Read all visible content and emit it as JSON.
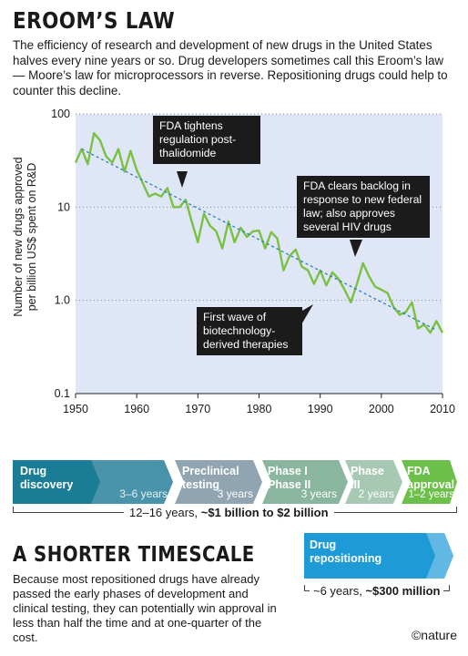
{
  "title": "EROOM’S LAW",
  "intro": "The efficiency of research and development of new drugs in the United States halves every nine years or so. Drug developers sometimes call this Eroom’s law — Moore’s law for microprocessors in reverse. Repositioning drugs could help to counter this decline.",
  "chart_data": {
    "type": "line",
    "ylabel": [
      "Number of new drugs approved",
      "per billion US$ spent on R&D"
    ],
    "xlabel": "",
    "y_scale": "log",
    "ylim": [
      0.1,
      100
    ],
    "xlim": [
      1950,
      2010
    ],
    "x_ticks": [
      1950,
      1960,
      1970,
      1980,
      1990,
      2000,
      2010
    ],
    "y_ticks": [
      0.1,
      1.0,
      10,
      100
    ],
    "y_tick_labels": [
      "0.1",
      "1.0",
      "10",
      "100"
    ],
    "grid": "horizontal dotted",
    "plot_background": "#dfe6f5",
    "line_color": "#7ac143",
    "trend_color": "#2d7dbf",
    "series": [
      {
        "x": [
          1950,
          1951,
          1952,
          1953,
          1954,
          1955,
          1956,
          1957,
          1958,
          1959,
          1960,
          1961,
          1962,
          1963,
          1964,
          1965,
          1966,
          1967,
          1968,
          1969,
          1970,
          1971,
          1972,
          1973,
          1974,
          1975,
          1976,
          1977,
          1978,
          1979,
          1980,
          1981,
          1982,
          1983,
          1984,
          1985,
          1986,
          1987,
          1988,
          1989,
          1990,
          1991,
          1992,
          1993,
          1994,
          1995,
          1996,
          1997,
          1998,
          1999,
          2000,
          2001,
          2002,
          2003,
          2004,
          2005,
          2006,
          2007,
          2008,
          2009,
          2010
        ],
        "y": [
          30,
          42,
          29,
          62,
          52,
          35,
          30,
          42,
          24,
          40,
          25,
          18,
          13,
          14,
          13,
          16,
          10,
          10,
          12,
          7,
          4.2,
          8.5,
          6.3,
          5.5,
          3.6,
          7,
          4.2,
          6,
          4.8,
          5.5,
          5.6,
          3.6,
          5.4,
          4.6,
          2.1,
          3,
          3.5,
          2.3,
          2.1,
          1.5,
          2.1,
          1.45,
          2,
          1.7,
          1.3,
          0.95,
          1.5,
          2.5,
          1.8,
          1.4,
          1.3,
          1.2,
          0.85,
          0.7,
          0.75,
          0.95,
          0.5,
          0.55,
          0.45,
          0.6,
          0.45
        ]
      }
    ],
    "trend": {
      "x": [
        1951,
        2009
      ],
      "y": [
        42,
        0.48
      ]
    },
    "callouts": [
      {
        "text": "FDA tightens regulation post-thalidomide"
      },
      {
        "text": "FDA clears backlog in response to new federal law; also approves several HIV drugs"
      },
      {
        "text": "First wave of biotechnology-derived therapies"
      }
    ]
  },
  "pipeline": {
    "stages": [
      {
        "label": "Drug discovery",
        "years": "3–6 years",
        "color": "#1b7d95"
      },
      {
        "label": "Preclinical testing",
        "years": "3 years",
        "color": "#90a4b2"
      },
      {
        "label": "Phase I Phase II",
        "years": "3 years",
        "color": "#8ab59f"
      },
      {
        "label": "Phase III",
        "years": "2 years",
        "color": "#a7c9b4"
      },
      {
        "label": "FDA approval",
        "years": "1–2 years",
        "color": "#6cc04a"
      }
    ],
    "total_prefix": "12–16 years, ",
    "total_bold": "~$1 billion to $2 billion"
  },
  "subtitle": "A SHORTER TIMESCALE",
  "body": "Because most repositioned drugs have already passed the early phases of development and clinical testing, they can potentially win approval in less than half the time and at one-quarter of the cost.",
  "repositioning": {
    "label": "Drug repositioning",
    "color": "#1e9bd7",
    "total_prefix": "~6 years, ",
    "total_bold": "~$300 million"
  },
  "credit": "©nature"
}
